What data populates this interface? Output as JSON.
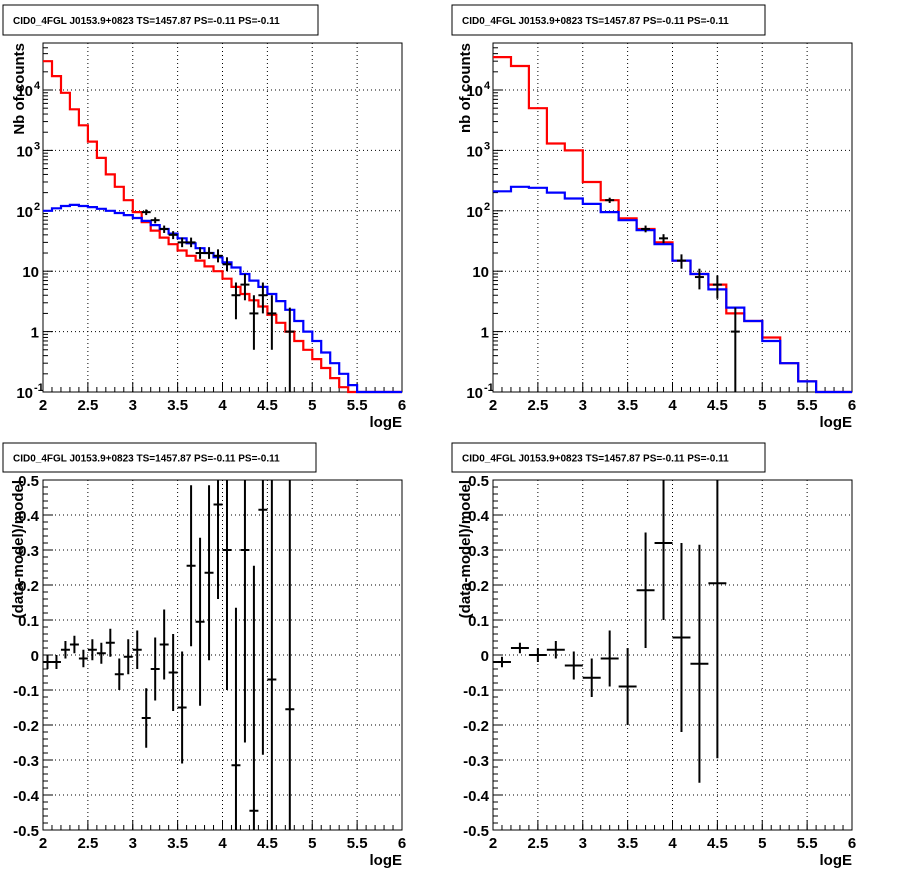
{
  "chart_data": [
    {
      "type": "line",
      "title": "CID0_4FGL J0153.9+0823 TS=1457.87 PS=-0.11 PS=-0.11",
      "xlabel": "logE",
      "ylabel": "Nb of counts",
      "xlim": [
        2,
        6
      ],
      "ylim": [
        0.1,
        60000
      ],
      "yscale": "log",
      "grid": true,
      "xticks": [
        "2",
        "2.5",
        "3",
        "3.5",
        "4",
        "4.5",
        "5",
        "5.5",
        "6"
      ],
      "yticks": [
        {
          "value": 0.1,
          "label": "10",
          "exp": "-1"
        },
        {
          "value": 1,
          "label": "1",
          "exp": ""
        },
        {
          "value": 10,
          "label": "10",
          "exp": ""
        },
        {
          "value": 100,
          "label": "10",
          "exp": "2"
        },
        {
          "value": 1000,
          "label": "10",
          "exp": "3"
        },
        {
          "value": 10000,
          "label": "10",
          "exp": "4"
        }
      ],
      "bin_edges": [
        2.0,
        2.1,
        2.2,
        2.3,
        2.4,
        2.5,
        2.6,
        2.7,
        2.8,
        2.9,
        3.0,
        3.1,
        3.2,
        3.3,
        3.4,
        3.5,
        3.6,
        3.7,
        3.8,
        3.9,
        4.0,
        4.1,
        4.2,
        4.3,
        4.4,
        4.5,
        4.6,
        4.7,
        4.8,
        4.9,
        5.0,
        5.1,
        5.2,
        5.3,
        5.4,
        5.5,
        5.6,
        5.7,
        5.8,
        5.9,
        6.0
      ],
      "series": [
        {
          "color": "#ff0000",
          "style": "step",
          "values": [
            30000,
            17000,
            9000,
            4800,
            2600,
            1400,
            750,
            400,
            250,
            150,
            95,
            65,
            47,
            36,
            28,
            22,
            18,
            15,
            12,
            10,
            7.5,
            5.5,
            4.2,
            3.3,
            2.6,
            1.9,
            1.4,
            1.0,
            0.7,
            0.5,
            0.35,
            0.25,
            0.17,
            0.12,
            0.1,
            0.1,
            0.1,
            0.1,
            0.1,
            0.1
          ]
        },
        {
          "color": "#0000ff",
          "style": "step",
          "values": [
            100,
            110,
            120,
            125,
            120,
            115,
            108,
            100,
            92,
            85,
            76,
            68,
            58,
            50,
            42,
            35,
            29,
            24,
            20,
            17,
            14,
            11.5,
            9,
            7,
            5.5,
            4.2,
            3.2,
            2.3,
            1.5,
            1.0,
            0.7,
            0.45,
            0.3,
            0.2,
            0.13,
            0.1,
            0.1,
            0.1,
            0.1,
            0.1
          ]
        },
        {
          "color": "#000000",
          "style": "points",
          "x": [
            3.15,
            3.25,
            3.35,
            3.45,
            3.55,
            3.65,
            3.75,
            3.85,
            3.95,
            4.05,
            4.15,
            4.25,
            4.35,
            4.45,
            4.55,
            4.75
          ],
          "y": [
            95,
            70,
            50,
            40,
            30,
            30,
            20,
            20,
            18,
            13,
            4,
            6,
            2,
            4,
            2,
            1
          ],
          "err_low": [
            85,
            62,
            43,
            34,
            25,
            25,
            16,
            16,
            14,
            10,
            1.6,
            3.3,
            0.5,
            2,
            0.5,
            0.05
          ],
          "err_high": [
            105,
            78,
            57,
            46,
            36,
            36,
            25,
            25,
            23,
            17,
            6.5,
            9,
            4,
            6.5,
            4,
            2.5
          ]
        }
      ]
    },
    {
      "type": "line",
      "title": "CID0_4FGL J0153.9+0823 TS=1457.87 PS=-0.11 PS=-0.11",
      "xlabel": "logE",
      "ylabel": "nb of counts",
      "xlim": [
        2,
        6
      ],
      "ylim": [
        0.1,
        60000
      ],
      "yscale": "log",
      "grid": true,
      "xticks": [
        "2",
        "2.5",
        "3",
        "3.5",
        "4",
        "4.5",
        "5",
        "5.5",
        "6"
      ],
      "yticks": [
        {
          "value": 0.1,
          "label": "10",
          "exp": "-1"
        },
        {
          "value": 1,
          "label": "1",
          "exp": ""
        },
        {
          "value": 10,
          "label": "10",
          "exp": ""
        },
        {
          "value": 100,
          "label": "10",
          "exp": "2"
        },
        {
          "value": 1000,
          "label": "10",
          "exp": "3"
        },
        {
          "value": 10000,
          "label": "10",
          "exp": "4"
        }
      ],
      "bin_edges": [
        2.0,
        2.2,
        2.4,
        2.6,
        2.8,
        3.0,
        3.2,
        3.4,
        3.6,
        3.8,
        4.0,
        4.2,
        4.4,
        4.6,
        4.8,
        5.0,
        5.2,
        5.4,
        5.6,
        5.8,
        6.0
      ],
      "series": [
        {
          "color": "#ff0000",
          "style": "step",
          "values": [
            35000,
            25000,
            5000,
            1300,
            1000,
            300,
            150,
            75,
            50,
            30,
            15,
            9,
            6,
            2,
            1.5,
            0.8,
            0.3,
            0.15,
            0.1,
            0.1
          ]
        },
        {
          "color": "#0000ff",
          "style": "step",
          "values": [
            210,
            250,
            240,
            200,
            160,
            130,
            95,
            70,
            48,
            28,
            15,
            9,
            5,
            2.5,
            1.5,
            0.7,
            0.3,
            0.15,
            0.1,
            0.1
          ]
        },
        {
          "color": "#000000",
          "style": "points",
          "x": [
            3.3,
            3.7,
            3.9,
            4.1,
            4.3,
            4.5,
            4.7
          ],
          "y": [
            150,
            50,
            35,
            15,
            8,
            6,
            1
          ],
          "err_low": [
            135,
            44,
            29,
            11,
            5,
            3.5,
            0.05
          ],
          "err_high": [
            165,
            57,
            41,
            19,
            11,
            8.5,
            2.5
          ]
        }
      ]
    },
    {
      "type": "scatter",
      "title": "CID0_4FGL J0153.9+0823 TS=1457.87 PS=-0.11 PS=-0.11",
      "xlabel": "logE",
      "ylabel": "(data-model)/model",
      "xlim": [
        2,
        6
      ],
      "ylim": [
        -0.5,
        0.5
      ],
      "grid": true,
      "xticks": [
        "2",
        "2.5",
        "3",
        "3.5",
        "4",
        "4.5",
        "5",
        "5.5",
        "6"
      ],
      "yticks": [
        "-0.5",
        "-0.4",
        "-0.3",
        "-0.2",
        "-0.1",
        "0",
        "0.1",
        "0.2",
        "0.3",
        "0.4",
        "0.5"
      ],
      "xerr": 0.05,
      "points": [
        {
          "x": 2.05,
          "y": -0.02,
          "err": 0.02
        },
        {
          "x": 2.15,
          "y": -0.02,
          "err": 0.02
        },
        {
          "x": 2.25,
          "y": 0.015,
          "err": 0.025
        },
        {
          "x": 2.35,
          "y": 0.03,
          "err": 0.025
        },
        {
          "x": 2.45,
          "y": -0.01,
          "err": 0.025
        },
        {
          "x": 2.55,
          "y": 0.015,
          "err": 0.03
        },
        {
          "x": 2.65,
          "y": 0.005,
          "err": 0.03
        },
        {
          "x": 2.75,
          "y": 0.035,
          "err": 0.04
        },
        {
          "x": 2.85,
          "y": -0.055,
          "err": 0.045
        },
        {
          "x": 2.95,
          "y": -0.005,
          "err": 0.05
        },
        {
          "x": 3.05,
          "y": 0.015,
          "err": 0.055
        },
        {
          "x": 3.15,
          "y": -0.18,
          "err": 0.085
        },
        {
          "x": 3.25,
          "y": -0.04,
          "err": 0.09
        },
        {
          "x": 3.35,
          "y": 0.03,
          "err": 0.1
        },
        {
          "x": 3.45,
          "y": -0.05,
          "err": 0.11
        },
        {
          "x": 3.55,
          "y": -0.15,
          "err": 0.16
        },
        {
          "x": 3.65,
          "y": 0.255,
          "err": 0.23
        },
        {
          "x": 3.75,
          "y": 0.095,
          "err": 0.24
        },
        {
          "x": 3.85,
          "y": 0.235,
          "err": 0.25
        },
        {
          "x": 3.95,
          "y": 0.43,
          "err": 0.27
        },
        {
          "x": 4.05,
          "y": 0.3,
          "err": 0.4
        },
        {
          "x": 4.15,
          "y": -0.315,
          "err": 0.45
        },
        {
          "x": 4.25,
          "y": 0.3,
          "err": 0.55
        },
        {
          "x": 4.35,
          "y": -0.445,
          "err": 0.7
        },
        {
          "x": 4.45,
          "y": 0.415,
          "err": 0.7
        },
        {
          "x": 4.55,
          "y": -0.07,
          "err": 0.8
        },
        {
          "x": 4.75,
          "y": -0.155,
          "err": 1.0
        }
      ]
    },
    {
      "type": "scatter",
      "title": "CID0_4FGL J0153.9+0823 TS=1457.87 PS=-0.11 PS=-0.11",
      "xlabel": "logE",
      "ylabel": "(data-model)/model",
      "xlim": [
        2,
        6
      ],
      "ylim": [
        -0.5,
        0.5
      ],
      "grid": true,
      "xticks": [
        "2",
        "2.5",
        "3",
        "3.5",
        "4",
        "4.5",
        "5",
        "5.5",
        "6"
      ],
      "yticks": [
        "-0.5",
        "-0.4",
        "-0.3",
        "-0.2",
        "-0.1",
        "0",
        "0.1",
        "0.2",
        "0.3",
        "0.4",
        "0.5"
      ],
      "xerr": 0.1,
      "points": [
        {
          "x": 2.1,
          "y": -0.02,
          "err": 0.015
        },
        {
          "x": 2.3,
          "y": 0.02,
          "err": 0.015
        },
        {
          "x": 2.5,
          "y": 0.0,
          "err": 0.02
        },
        {
          "x": 2.7,
          "y": 0.015,
          "err": 0.025
        },
        {
          "x": 2.9,
          "y": -0.03,
          "err": 0.04
        },
        {
          "x": 3.1,
          "y": -0.065,
          "err": 0.055
        },
        {
          "x": 3.3,
          "y": -0.01,
          "err": 0.08
        },
        {
          "x": 3.5,
          "y": -0.09,
          "err": 0.11
        },
        {
          "x": 3.7,
          "y": 0.185,
          "err": 0.165
        },
        {
          "x": 3.9,
          "y": 0.32,
          "err": 0.22
        },
        {
          "x": 4.1,
          "y": 0.05,
          "err": 0.27
        },
        {
          "x": 4.3,
          "y": -0.025,
          "err": 0.34
        },
        {
          "x": 4.5,
          "y": 0.205,
          "err": 0.5
        }
      ]
    }
  ]
}
